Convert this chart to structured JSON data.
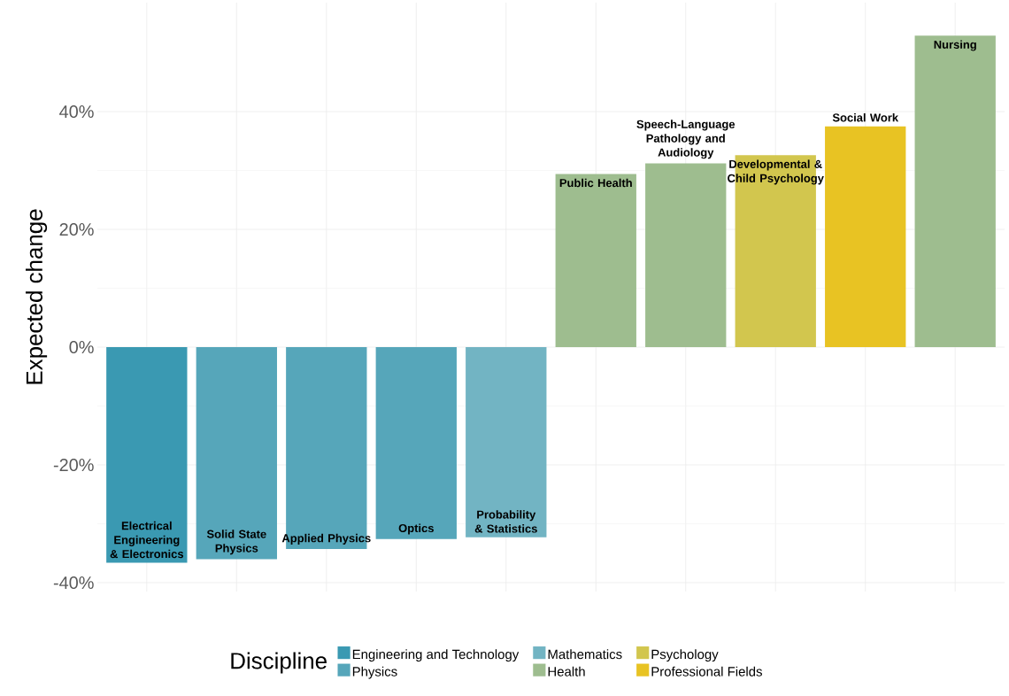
{
  "chart_data": {
    "type": "bar",
    "ylabel": "Expected change",
    "legend_title": "Discipline",
    "categories": [
      "Electrical Engineering & Electronics",
      "Solid State Physics",
      "Applied Physics",
      "Optics",
      "Probability & Statistics",
      "Public Health",
      "Speech-Language Pathology and Audiology",
      "Developmental & Child Psychology",
      "Social Work",
      "Nursing"
    ],
    "series": [
      {
        "name": "Engineering and Technology",
        "color": "#3a99b2",
        "values": [
          -36.6,
          null,
          null,
          null,
          null,
          null,
          null,
          null,
          null,
          null
        ]
      },
      {
        "name": "Mathematics",
        "color": "#72b4c3",
        "values": [
          null,
          null,
          null,
          null,
          -32.3,
          null,
          null,
          null,
          null,
          null
        ]
      },
      {
        "name": "Psychology",
        "color": "#d2c64e",
        "values": [
          null,
          null,
          null,
          null,
          null,
          null,
          null,
          32.6,
          null,
          null
        ]
      },
      {
        "name": "Physics",
        "color": "#56a6ba",
        "values": [
          null,
          -36.0,
          -34.3,
          -32.6,
          null,
          null,
          null,
          null,
          null,
          null
        ]
      },
      {
        "name": "Health",
        "color": "#9ebd8f",
        "values": [
          null,
          null,
          null,
          null,
          null,
          29.4,
          31.2,
          null,
          null,
          52.9
        ]
      },
      {
        "name": "Professional Fields",
        "color": "#e8c323",
        "values": [
          null,
          null,
          null,
          null,
          null,
          null,
          null,
          null,
          37.5,
          null
        ]
      }
    ],
    "ylim": [
      -41.5,
      58.5
    ],
    "yticks": [
      {
        "value": -40,
        "label": "-40%"
      },
      {
        "value": -20,
        "label": "-20%"
      },
      {
        "value": 0,
        "label": "0%"
      },
      {
        "value": 20,
        "label": "20%"
      },
      {
        "value": 40,
        "label": "40%"
      }
    ],
    "grid": true,
    "legend": "bottom",
    "tick_labels": "y"
  }
}
